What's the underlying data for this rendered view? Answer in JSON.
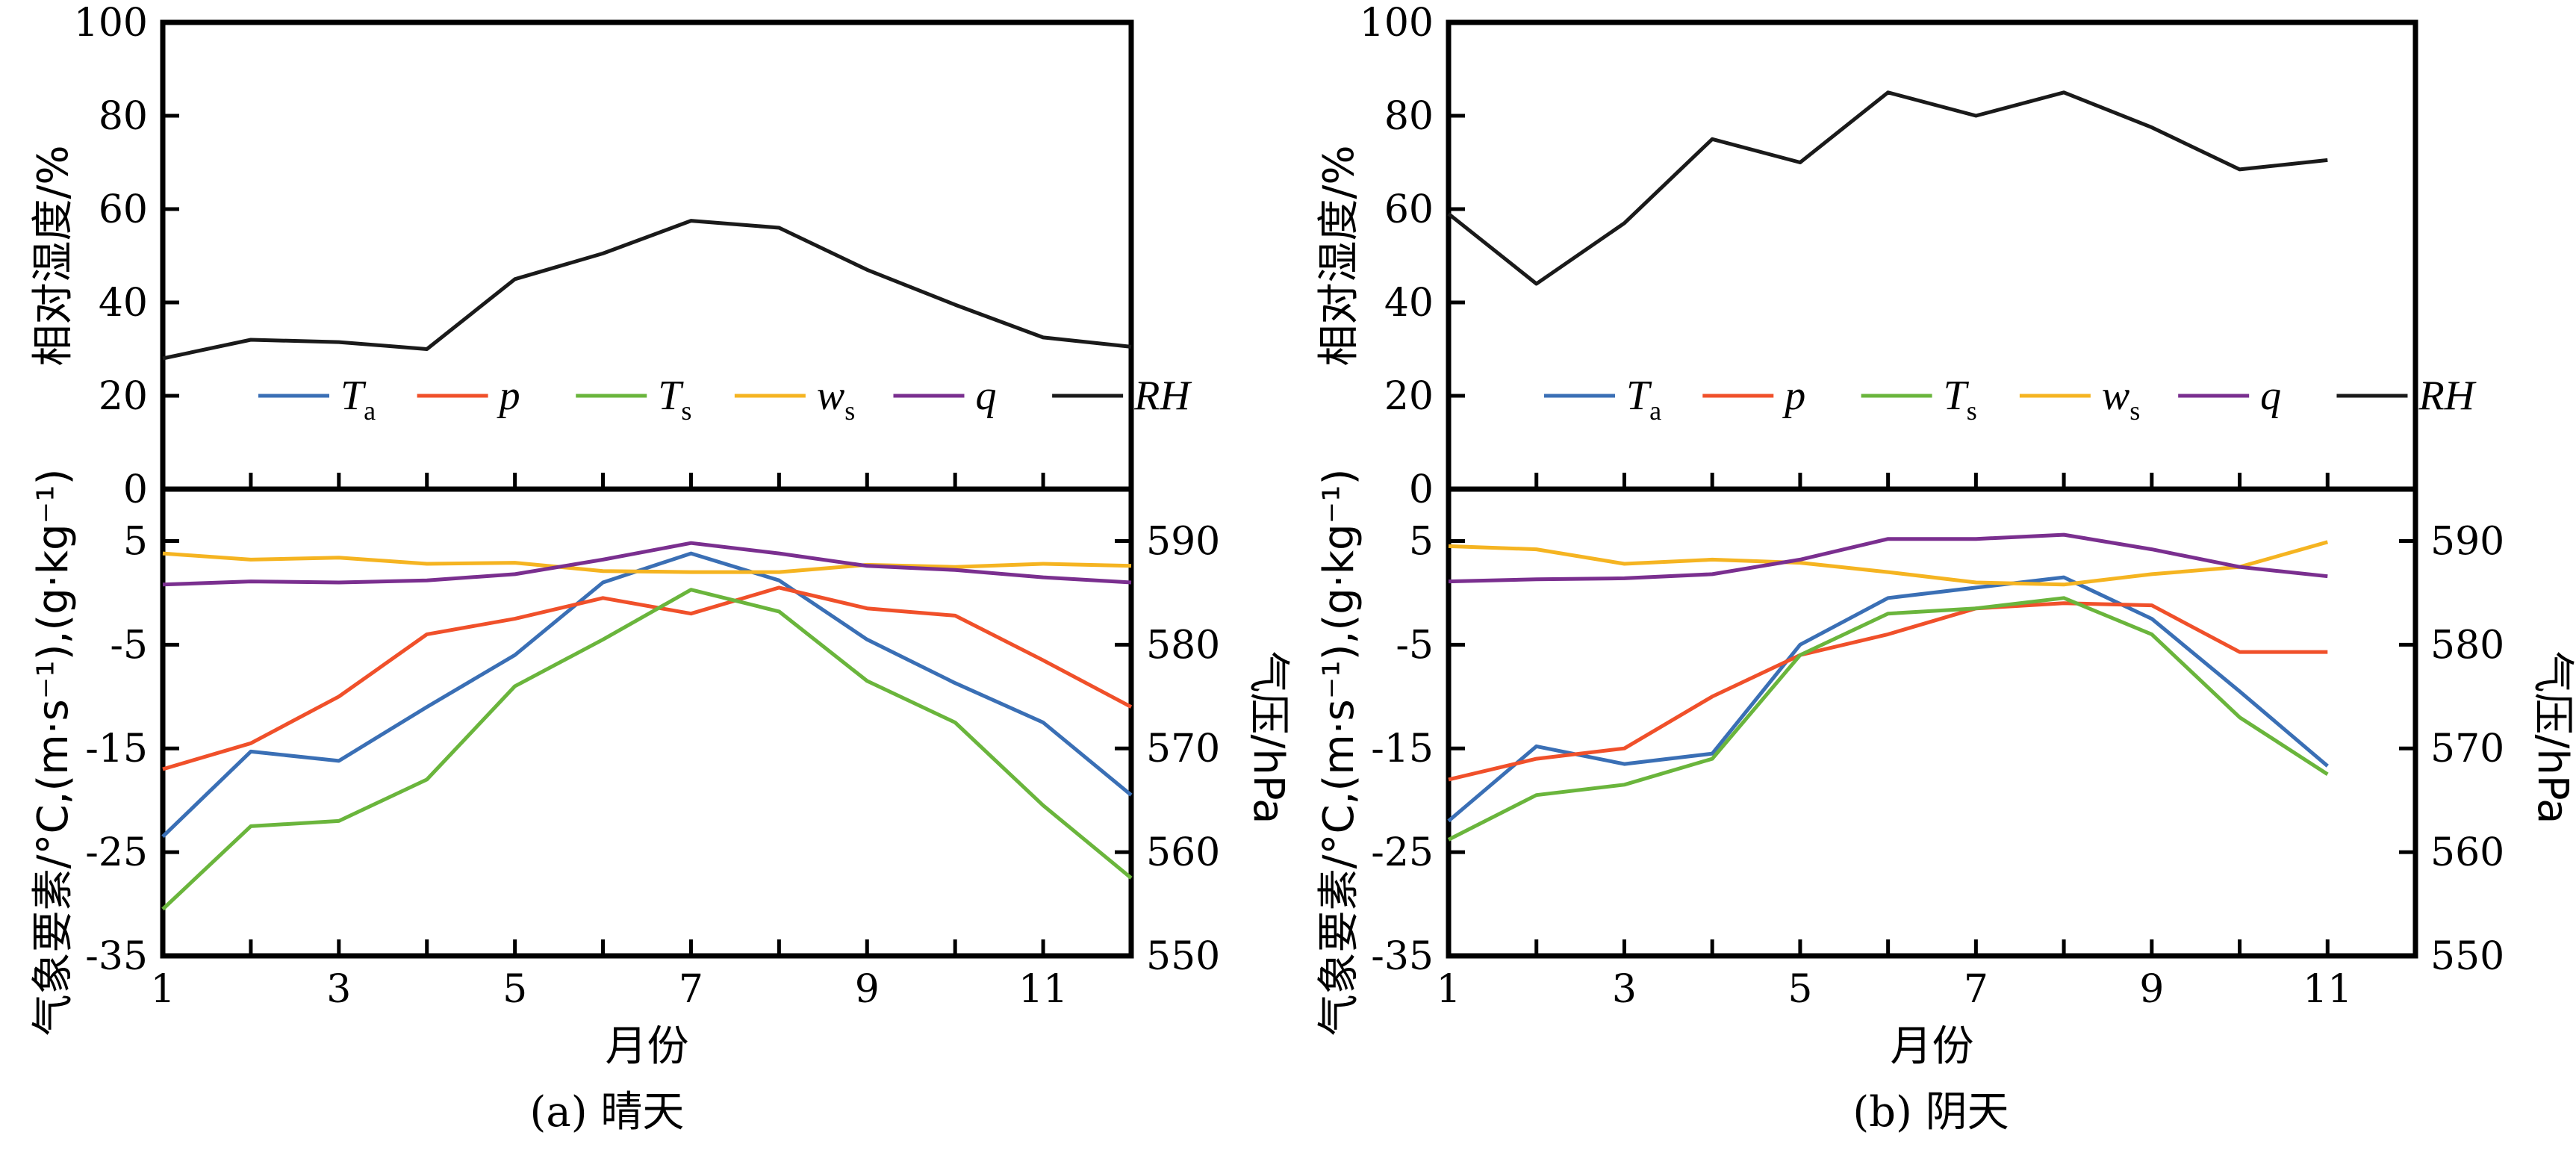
{
  "colors": {
    "Ta": "#3a6fb5",
    "p": "#f0502a",
    "Ts": "#6ab53c",
    "ws": "#f5b421",
    "q": "#7a2f8f",
    "RH": "#1a1a1a"
  },
  "chart_data": [
    {
      "type": "line",
      "caption": "(a) 晴天",
      "xlabel": "月份",
      "x_ticks": [
        "1",
        "3",
        "5",
        "7",
        "9",
        "11"
      ],
      "xlim": [
        1,
        12
      ],
      "top": {
        "ylabel": "相对湿度/%",
        "ylim": [
          0,
          100
        ],
        "y_ticks": [
          "0",
          "20",
          "40",
          "60",
          "80",
          "100"
        ],
        "series": [
          {
            "name": "RH",
            "key": "RH",
            "x": [
              1,
              2,
              3,
              4,
              5,
              6,
              7,
              8,
              9,
              10,
              11,
              12
            ],
            "values": [
              28,
              32,
              31.5,
              30,
              45,
              50.5,
              57.5,
              56,
              47,
              39.5,
              32.5,
              30.5
            ]
          }
        ]
      },
      "bottom": {
        "ylabel_left": "气象要素/°C,(m·s⁻¹),(g·kg⁻¹)",
        "ylabel_right": "气压/hPa",
        "ylim_left": [
          -35,
          10
        ],
        "ylim_right": [
          550,
          595
        ],
        "y_ticks_left": [
          "5",
          "-5",
          "-15",
          "-25",
          "-35"
        ],
        "y_ticks_right": [
          "590",
          "580",
          "570",
          "560",
          "550"
        ],
        "series": [
          {
            "name": "Ta",
            "key": "Ta",
            "axis": "left",
            "x": [
              1,
              2,
              3,
              4,
              5,
              6,
              7,
              8,
              9,
              10,
              11,
              12
            ],
            "values": [
              -23.5,
              -15.3,
              -16.2,
              -11,
              -6,
              1,
              3.8,
              1.2,
              -4.5,
              -8.7,
              -12.5,
              -19.5
            ]
          },
          {
            "name": "p",
            "key": "p",
            "axis": "right",
            "x": [
              1,
              2,
              3,
              4,
              5,
              6,
              7,
              8,
              9,
              10,
              11,
              12
            ],
            "values": [
              568,
              570.5,
              575,
              581,
              582.5,
              584.5,
              583,
              585.5,
              583.5,
              582.8,
              578.5,
              574
            ]
          },
          {
            "name": "Ts",
            "key": "Ts",
            "axis": "left",
            "x": [
              1,
              2,
              3,
              4,
              5,
              6,
              7,
              8,
              9,
              10,
              11,
              12
            ],
            "values": [
              -30.5,
              -22.5,
              -22,
              -18,
              -9,
              -4.5,
              0.3,
              -1.8,
              -8.5,
              -12.5,
              -20.5,
              -27.5
            ]
          },
          {
            "name": "ws",
            "key": "ws",
            "axis": "left",
            "x": [
              1,
              2,
              3,
              4,
              5,
              6,
              7,
              8,
              9,
              10,
              11,
              12
            ],
            "values": [
              3.8,
              3.2,
              3.4,
              2.8,
              2.9,
              2.1,
              2,
              2,
              2.7,
              2.5,
              2.8,
              2.6
            ]
          },
          {
            "name": "q",
            "key": "q",
            "axis": "left",
            "x": [
              1,
              2,
              3,
              4,
              5,
              6,
              7,
              8,
              9,
              10,
              11,
              12
            ],
            "values": [
              0.8,
              1.1,
              1,
              1.2,
              1.8,
              3.2,
              4.8,
              3.8,
              2.6,
              2.2,
              1.5,
              1
            ]
          }
        ]
      },
      "legend": [
        "Ta",
        "p",
        "Ts",
        "ws",
        "q",
        "RH"
      ]
    },
    {
      "type": "line",
      "caption": "(b) 阴天",
      "xlabel": "月份",
      "x_ticks": [
        "1",
        "3",
        "5",
        "7",
        "9",
        "11"
      ],
      "xlim": [
        1,
        12
      ],
      "top": {
        "ylabel": "相对湿度/%",
        "ylim": [
          0,
          100
        ],
        "y_ticks": [
          "0",
          "20",
          "40",
          "60",
          "80",
          "100"
        ],
        "series": [
          {
            "name": "RH",
            "key": "RH",
            "x": [
              1,
              2,
              3,
              4,
              5,
              6,
              7,
              8,
              9,
              10,
              11
            ],
            "values": [
              59,
              44,
              57,
              75,
              70,
              85,
              80,
              85,
              77.5,
              68.5,
              70.5
            ]
          }
        ]
      },
      "bottom": {
        "ylabel_left": "气象要素/°C,(m·s⁻¹),(g·kg⁻¹)",
        "ylabel_right": "气压/hPa",
        "ylim_left": [
          -35,
          10
        ],
        "ylim_right": [
          550,
          595
        ],
        "y_ticks_left": [
          "5",
          "-5",
          "-15",
          "-25",
          "-35"
        ],
        "y_ticks_right": [
          "590",
          "580",
          "570",
          "560",
          "550"
        ],
        "series": [
          {
            "name": "Ta",
            "key": "Ta",
            "axis": "left",
            "x": [
              1,
              2,
              3,
              4,
              5,
              6,
              7,
              8,
              9,
              10,
              11
            ],
            "values": [
              -22,
              -14.8,
              -16.5,
              -15.5,
              -5,
              -0.5,
              0.5,
              1.5,
              -2.5,
              -9.5,
              -16.7
            ]
          },
          {
            "name": "p",
            "key": "p",
            "axis": "right",
            "x": [
              1,
              2,
              3,
              4,
              5,
              6,
              7,
              8,
              9,
              10,
              11
            ],
            "values": [
              567,
              569,
              570,
              575,
              579,
              581,
              583.5,
              584,
              583.8,
              579.3,
              579.3
            ]
          },
          {
            "name": "Ts",
            "key": "Ts",
            "axis": "left",
            "x": [
              1,
              2,
              3,
              4,
              5,
              6,
              7,
              8,
              9,
              10,
              11
            ],
            "values": [
              -23.8,
              -19.5,
              -18.5,
              -16,
              -6,
              -2,
              -1.5,
              -0.5,
              -4,
              -12,
              -17.5
            ]
          },
          {
            "name": "ws",
            "key": "ws",
            "axis": "left",
            "x": [
              1,
              2,
              3,
              4,
              5,
              6,
              7,
              8,
              9,
              10,
              11
            ],
            "values": [
              4.5,
              4.2,
              2.8,
              3.2,
              2.9,
              2,
              1,
              0.8,
              1.8,
              2.5,
              4.9
            ]
          },
          {
            "name": "q",
            "key": "q",
            "axis": "left",
            "x": [
              1,
              2,
              3,
              4,
              5,
              6,
              7,
              8,
              9,
              10,
              11
            ],
            "values": [
              1.1,
              1.3,
              1.4,
              1.8,
              3.2,
              5.2,
              5.2,
              5.6,
              4.2,
              2.5,
              1.6
            ]
          }
        ]
      },
      "legend": [
        "Ta",
        "p",
        "Ts",
        "ws",
        "q",
        "RH"
      ]
    }
  ]
}
